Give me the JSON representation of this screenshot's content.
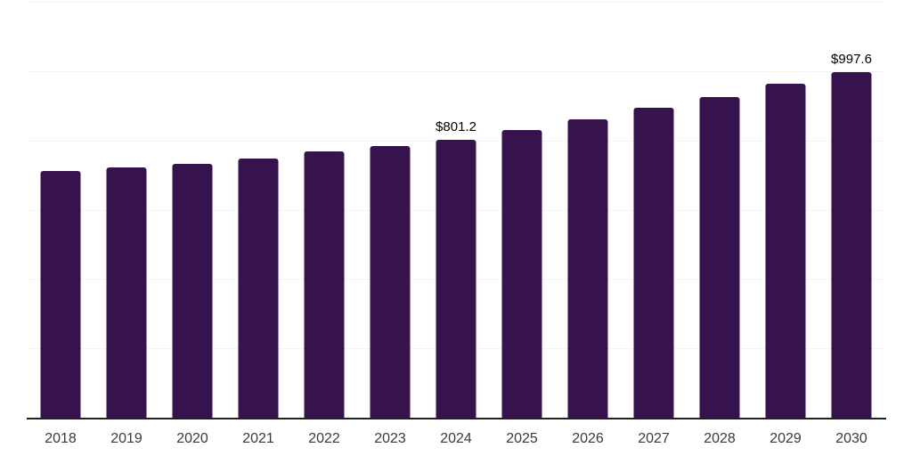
{
  "chart_data": {
    "type": "bar",
    "title": "",
    "xlabel": "",
    "ylabel": "",
    "categories": [
      "2018",
      "2019",
      "2020",
      "2021",
      "2022",
      "2023",
      "2024",
      "2025",
      "2026",
      "2027",
      "2028",
      "2029",
      "2030"
    ],
    "values": [
      712,
      721.5,
      732.5,
      748.5,
      768,
      784,
      801.2,
      830,
      862,
      894.5,
      925.5,
      962.5,
      997.6
    ],
    "data_labels": [
      "",
      "",
      "",
      "",
      "",
      "",
      "$801.2",
      "",
      "",
      "",
      "",
      "",
      "$997.6"
    ],
    "ylim": [
      0,
      1200
    ],
    "gridline_step": 200,
    "grid": true,
    "legend": false,
    "y_axis_labels_visible": false,
    "colors": {
      "bar": "#37134D",
      "gridline": "#f4f4f6",
      "axis": "#222222",
      "tick_label": "#3a3a3a",
      "data_label": "#000000",
      "background": "#ffffff"
    }
  }
}
